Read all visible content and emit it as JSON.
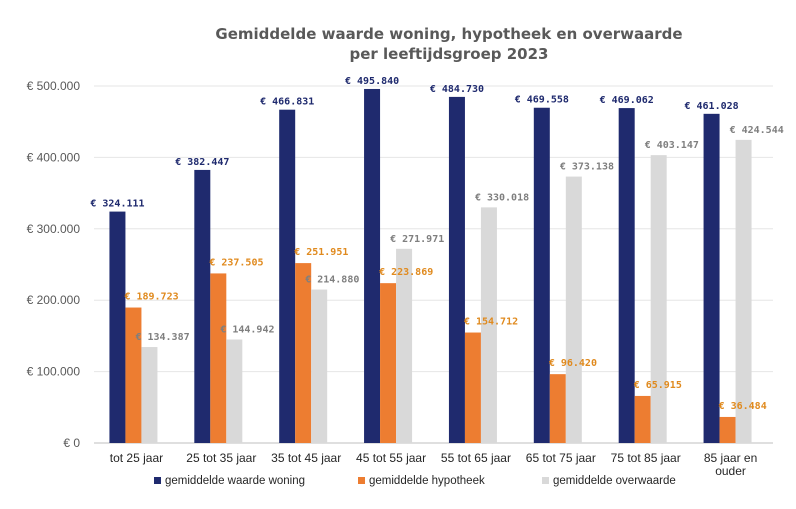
{
  "chart_data": {
    "type": "bar",
    "title_lines": [
      "Gemiddelde waarde woning, hypotheek en overwaarde",
      "per leeftijdsgroep 2023"
    ],
    "categories": [
      [
        "tot 25 jaar"
      ],
      [
        "25 tot 35 jaar"
      ],
      [
        "35 tot 45 jaar"
      ],
      [
        "45 tot 55 jaar"
      ],
      [
        "55 tot 65 jaar"
      ],
      [
        "65 tot 75 jaar"
      ],
      [
        "75 tot 85 jaar"
      ],
      [
        "85 jaar en",
        "ouder"
      ]
    ],
    "series": [
      {
        "name": "gemiddelde waarde woning",
        "color": "#1f2a6e",
        "label_color": "#1f2a6e",
        "values": [
          324111,
          382447,
          466831,
          495840,
          484730,
          469558,
          469062,
          461028
        ],
        "labels": [
          "€ 324.111",
          "€ 382.447",
          "€ 466.831",
          "€ 495.840",
          "€ 484.730",
          "€ 469.558",
          "€ 469.062",
          "€ 461.028"
        ]
      },
      {
        "name": "gemiddelde hypotheek",
        "color": "#ed7d31",
        "label_color": "#e08a1e",
        "values": [
          189723,
          237505,
          251951,
          223869,
          154712,
          96420,
          65915,
          36484
        ],
        "labels": [
          "€ 189.723",
          "€ 237.505",
          "€ 251.951",
          "€ 223.869",
          "€ 154.712",
          "€ 96.420",
          "€ 65.915",
          "€ 36.484"
        ]
      },
      {
        "name": "gemiddelde overwaarde",
        "color": "#d9d9d9",
        "label_color": "#7f7f7f",
        "values": [
          134387,
          144942,
          214880,
          271971,
          330018,
          373138,
          403147,
          424544
        ],
        "labels": [
          "€ 134.387",
          "€ 144.942",
          "€ 214.880",
          "€ 271.971",
          "€ 330.018",
          "€ 373.138",
          "€ 403.147",
          "€ 424.544"
        ]
      }
    ],
    "ylim": [
      0,
      500000
    ],
    "yticks": [
      {
        "value": 0,
        "label": "€ 0"
      },
      {
        "value": 100000,
        "label": "€ 100.000"
      },
      {
        "value": 200000,
        "label": "€ 200.000"
      },
      {
        "value": 300000,
        "label": "€ 300.000"
      },
      {
        "value": 400000,
        "label": "€ 400.000"
      },
      {
        "value": 500000,
        "label": "€ 500.000"
      }
    ],
    "xlabel": "",
    "ylabel": "",
    "grid": true,
    "legend_position": "bottom"
  }
}
